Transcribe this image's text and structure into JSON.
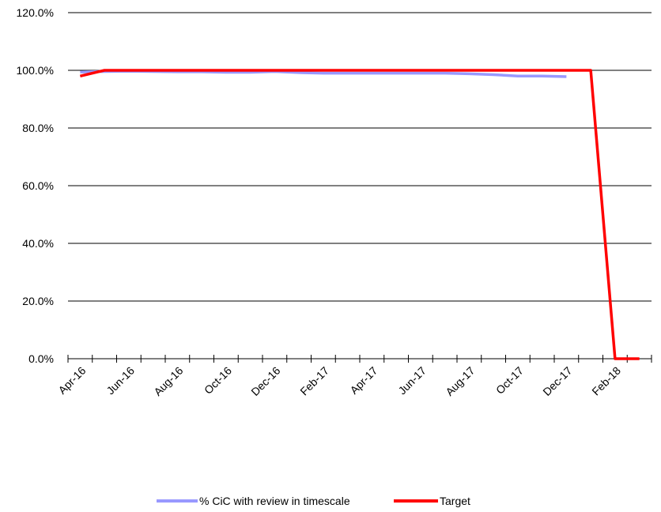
{
  "chart_data": {
    "type": "line",
    "title": "",
    "xlabel": "",
    "ylabel": "",
    "ylim": [
      0,
      120
    ],
    "ytick_values": [
      0,
      20,
      40,
      60,
      80,
      100,
      120
    ],
    "ytick_labels": [
      "0.0%",
      "20.0%",
      "40.0%",
      "60.0%",
      "80.0%",
      "100.0%",
      "120.0%"
    ],
    "categories": [
      "Apr-16",
      "May-16",
      "Jun-16",
      "Jul-16",
      "Aug-16",
      "Sep-16",
      "Oct-16",
      "Nov-16",
      "Dec-16",
      "Jan-17",
      "Feb-17",
      "Mar-17",
      "Apr-17",
      "May-17",
      "Jun-17",
      "Jul-17",
      "Aug-17",
      "Sep-17",
      "Oct-17",
      "Nov-17",
      "Dec-17",
      "Jan-18",
      "Feb-18",
      "Mar-18"
    ],
    "xtick_labels": [
      "Apr-16",
      "",
      "Jun-16",
      "",
      "Aug-16",
      "",
      "Oct-16",
      "",
      "Dec-16",
      "",
      "Feb-17",
      "",
      "Apr-17",
      "",
      "Jun-17",
      "",
      "Aug-17",
      "",
      "Oct-17",
      "",
      "Dec-17",
      "",
      "Feb-18",
      ""
    ],
    "grid": "horizontal",
    "legend_position": "bottom",
    "series": [
      {
        "name": "% CiC with review in timescale",
        "color": "#9999ff",
        "values": [
          99.4,
          99.6,
          99.7,
          99.6,
          99.5,
          99.5,
          99.3,
          99.3,
          99.6,
          99.2,
          99.0,
          99.0,
          99.0,
          99.0,
          99.0,
          99.0,
          98.8,
          98.5,
          98.0,
          98.0,
          97.8,
          null,
          null,
          null
        ]
      },
      {
        "name": "Target",
        "color": "#ff0000",
        "values": [
          98.0,
          100,
          100,
          100,
          100,
          100,
          100,
          100,
          100,
          100,
          100,
          100,
          100,
          100,
          100,
          100,
          100,
          100,
          100,
          100,
          100,
          100,
          0,
          0
        ]
      }
    ]
  }
}
